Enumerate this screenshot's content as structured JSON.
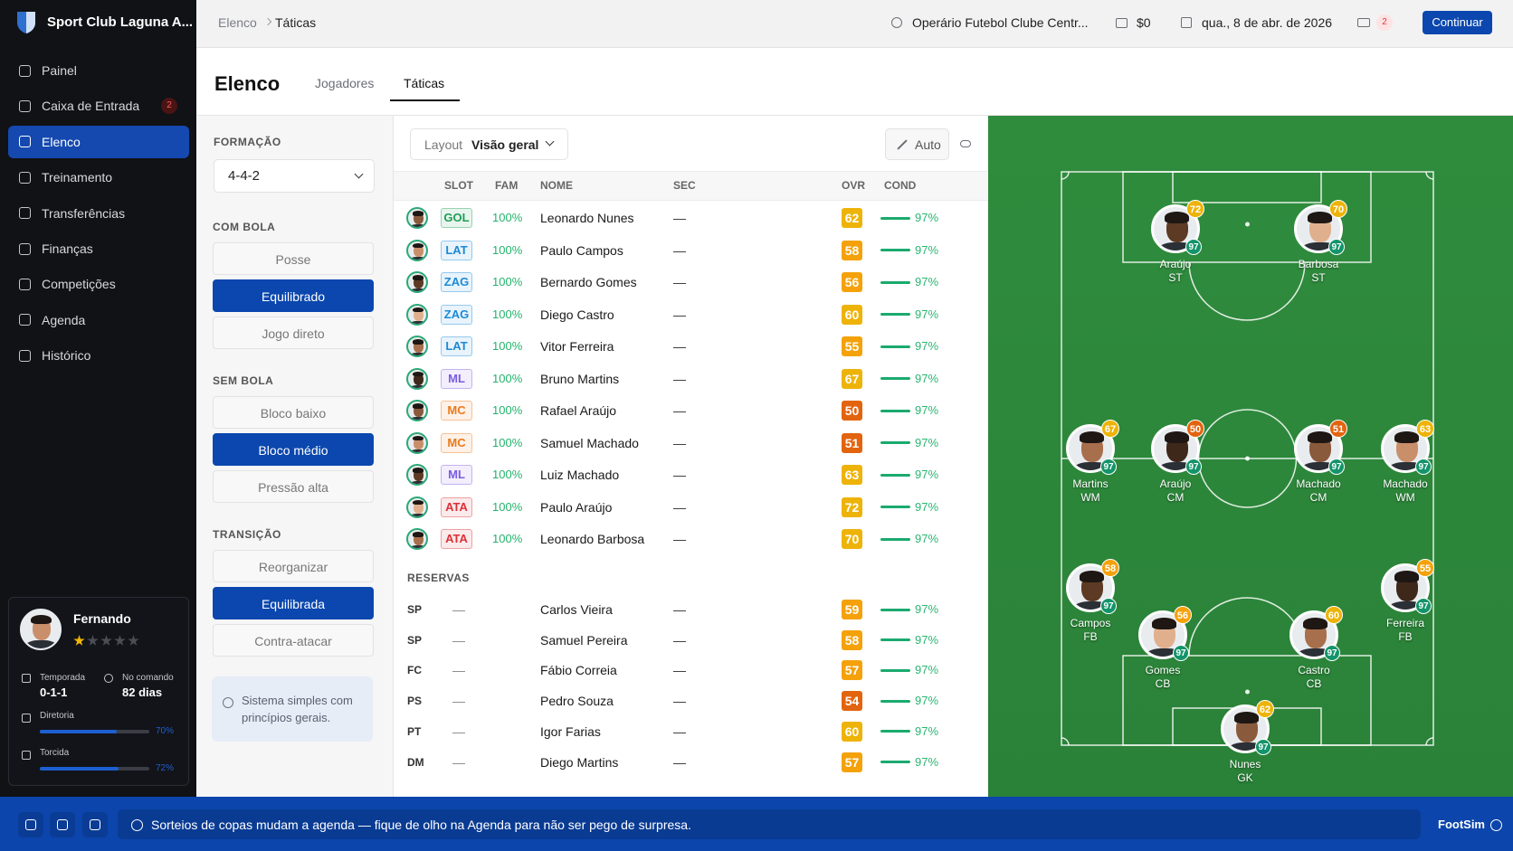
{
  "sidebar": {
    "club": "Sport Club Laguna A...",
    "nav": [
      {
        "label": "Painel"
      },
      {
        "label": "Caixa de Entrada",
        "badge": 2
      },
      {
        "label": "Elenco",
        "active": true
      },
      {
        "label": "Treinamento"
      },
      {
        "label": "Transferências"
      },
      {
        "label": "Finanças"
      },
      {
        "label": "Competições"
      },
      {
        "label": "Agenda"
      },
      {
        "label": "Histórico"
      }
    ],
    "manager": {
      "name": "Fernando",
      "rating": 1,
      "rating_max": 5,
      "stats": [
        {
          "label": "Temporada",
          "value": "0-1-1"
        },
        {
          "label": "No comando",
          "value": "82 dias"
        }
      ],
      "meters": [
        {
          "label": "Diretoria",
          "value": 70,
          "value_label": "70%"
        },
        {
          "label": "Torcida",
          "value": 72,
          "value_label": "72%"
        }
      ]
    }
  },
  "topbar": {
    "breadcrumb": [
      "Elenco",
      "Táticas"
    ],
    "opponent": "Operário Futebol Clube Centr...",
    "money": "$0",
    "date": "qua., 8 de abr. de 2026",
    "mail_count": 2,
    "button": "Continuar"
  },
  "header": {
    "title": "Elenco",
    "tabs": [
      {
        "label": "Jogadores"
      },
      {
        "label": "Táticas",
        "active": true
      }
    ]
  },
  "tactics": {
    "formation_label": "FORMAÇÃO",
    "formation": "4-4-2",
    "groups": [
      {
        "title": "COM BOLA",
        "options": [
          "Posse",
          "Equilibrado",
          "Jogo direto"
        ],
        "selected": 1
      },
      {
        "title": "SEM BOLA",
        "options": [
          "Bloco baixo",
          "Bloco médio",
          "Pressão alta"
        ],
        "selected": 1
      },
      {
        "title": "TRANSIÇÃO",
        "options": [
          "Reorganizar",
          "Equilibrada",
          "Contra-atacar"
        ],
        "selected": 1
      }
    ],
    "info": "Sistema simples com princípios gerais."
  },
  "squad": {
    "layout_label": "Layout",
    "layout_value": "Visão geral",
    "auto": "Auto",
    "columns": [
      "SLOT",
      "FAM",
      "NOME",
      "SEC",
      "OVR",
      "COND"
    ],
    "starters": [
      {
        "slot": "GOL",
        "color": "#1f9d55",
        "fam": "100%",
        "name": "Leonardo Nunes",
        "sec": "—",
        "ovr": 62,
        "cond": "97%"
      },
      {
        "slot": "LAT",
        "color": "#1c8ad6",
        "fam": "100%",
        "name": "Paulo Campos",
        "sec": "—",
        "ovr": 58,
        "cond": "97%"
      },
      {
        "slot": "ZAG",
        "color": "#1c8ad6",
        "fam": "100%",
        "name": "Bernardo Gomes",
        "sec": "—",
        "ovr": 56,
        "cond": "97%"
      },
      {
        "slot": "ZAG",
        "color": "#1c8ad6",
        "fam": "100%",
        "name": "Diego Castro",
        "sec": "—",
        "ovr": 60,
        "cond": "97%"
      },
      {
        "slot": "LAT",
        "color": "#1c8ad6",
        "fam": "100%",
        "name": "Vitor Ferreira",
        "sec": "—",
        "ovr": 55,
        "cond": "97%"
      },
      {
        "slot": "ML",
        "color": "#7b5ce0",
        "fam": "100%",
        "name": "Bruno Martins",
        "sec": "—",
        "ovr": 67,
        "cond": "97%"
      },
      {
        "slot": "MC",
        "color": "#ea7a1a",
        "fam": "100%",
        "name": "Rafael Araújo",
        "sec": "—",
        "ovr": 50,
        "cond": "97%"
      },
      {
        "slot": "MC",
        "color": "#ea7a1a",
        "fam": "100%",
        "name": "Samuel Machado",
        "sec": "—",
        "ovr": 51,
        "cond": "97%"
      },
      {
        "slot": "ML",
        "color": "#7b5ce0",
        "fam": "100%",
        "name": "Luiz Machado",
        "sec": "—",
        "ovr": 63,
        "cond": "97%"
      },
      {
        "slot": "ATA",
        "color": "#dc2f36",
        "fam": "100%",
        "name": "Paulo Araújo",
        "sec": "—",
        "ovr": 72,
        "cond": "97%"
      },
      {
        "slot": "ATA",
        "color": "#dc2f36",
        "fam": "100%",
        "name": "Leonardo Barbosa",
        "sec": "—",
        "ovr": 70,
        "cond": "97%"
      }
    ],
    "reserves_title": "RESERVAS",
    "reserves": [
      {
        "pos": "SP",
        "fam": "—",
        "name": "Carlos Vieira",
        "sec": "—",
        "ovr": 59,
        "cond": "97%"
      },
      {
        "pos": "SP",
        "fam": "—",
        "name": "Samuel Pereira",
        "sec": "—",
        "ovr": 58,
        "cond": "97%"
      },
      {
        "pos": "FC",
        "fam": "—",
        "name": "Fábio Correia",
        "sec": "—",
        "ovr": 57,
        "cond": "97%"
      },
      {
        "pos": "PS",
        "fam": "—",
        "name": "Pedro Souza",
        "sec": "—",
        "ovr": 54,
        "cond": "97%"
      },
      {
        "pos": "PT",
        "fam": "—",
        "name": "Igor Farias",
        "sec": "—",
        "ovr": 60,
        "cond": "97%"
      },
      {
        "pos": "DM",
        "fam": "—",
        "name": "Diego Martins",
        "sec": "—",
        "ovr": 57,
        "cond": "97%"
      }
    ]
  },
  "pitch": {
    "players": [
      {
        "name": "Araújo",
        "pos": "ST",
        "ovr": 72,
        "cond": 97
      },
      {
        "name": "Barbosa",
        "pos": "ST",
        "ovr": 70,
        "cond": 97
      },
      {
        "name": "Martins",
        "pos": "WM",
        "ovr": 67,
        "cond": 97
      },
      {
        "name": "Araújo",
        "pos": "CM",
        "ovr": 50,
        "cond": 97
      },
      {
        "name": "Machado",
        "pos": "CM",
        "ovr": 51,
        "cond": 97
      },
      {
        "name": "Machado",
        "pos": "WM",
        "ovr": 63,
        "cond": 97
      },
      {
        "name": "Campos",
        "pos": "FB",
        "ovr": 58,
        "cond": 97
      },
      {
        "name": "Gomes",
        "pos": "CB",
        "ovr": 56,
        "cond": 97
      },
      {
        "name": "Castro",
        "pos": "CB",
        "ovr": 60,
        "cond": 97
      },
      {
        "name": "Ferreira",
        "pos": "FB",
        "ovr": 55,
        "cond": 97
      },
      {
        "name": "Nunes",
        "pos": "GK",
        "ovr": 62,
        "cond": 97
      }
    ]
  },
  "footer": {
    "message": "Sorteios de copas mudam a agenda — fique de olho na Agenda para não ser pego de surpresa.",
    "brand": "FootSim"
  }
}
